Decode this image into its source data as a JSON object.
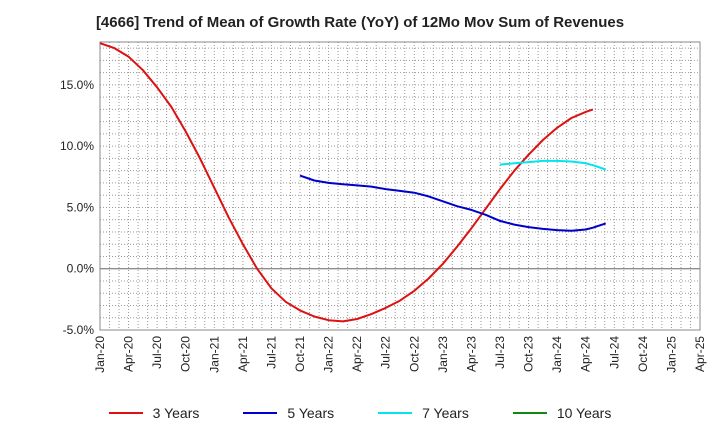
{
  "chart_data": {
    "type": "line",
    "title": "[4666]  Trend of Mean of Growth Rate (YoY) of 12Mo Mov Sum of Revenues",
    "xlabel": "",
    "ylabel": "",
    "x_ticks": [
      "Jan-20",
      "Apr-20",
      "Jul-20",
      "Oct-20",
      "Jan-21",
      "Apr-21",
      "Jul-21",
      "Oct-21",
      "Jan-22",
      "Apr-22",
      "Jul-22",
      "Oct-22",
      "Jan-23",
      "Apr-23",
      "Jul-23",
      "Oct-23",
      "Jan-24",
      "Apr-24",
      "Jul-24",
      "Oct-24",
      "Jan-25",
      "Apr-25"
    ],
    "y_ticks": [
      "-5.0%",
      "0.0%",
      "5.0%",
      "10.0%",
      "15.0%"
    ],
    "y_tick_values": [
      -5,
      0,
      5,
      10,
      15
    ],
    "ylim": [
      -5,
      18.5
    ],
    "x_range_quarters": [
      0,
      21
    ],
    "grid": true,
    "legend_position": "bottom",
    "series": [
      {
        "name": "3 Years",
        "color": "#dd1111",
        "points": [
          [
            0,
            18.4
          ],
          [
            0.5,
            18.0
          ],
          [
            1,
            17.3
          ],
          [
            1.5,
            16.2
          ],
          [
            2,
            14.8
          ],
          [
            2.5,
            13.2
          ],
          [
            3,
            11.2
          ],
          [
            3.5,
            9.0
          ],
          [
            4,
            6.6
          ],
          [
            4.5,
            4.2
          ],
          [
            5,
            2.0
          ],
          [
            5.5,
            0.0
          ],
          [
            6,
            -1.6
          ],
          [
            6.5,
            -2.7
          ],
          [
            7,
            -3.4
          ],
          [
            7.5,
            -3.9
          ],
          [
            8,
            -4.2
          ],
          [
            8.5,
            -4.3
          ],
          [
            9,
            -4.1
          ],
          [
            9.5,
            -3.7
          ],
          [
            10,
            -3.2
          ],
          [
            10.5,
            -2.6
          ],
          [
            11,
            -1.8
          ],
          [
            11.5,
            -0.8
          ],
          [
            12,
            0.4
          ],
          [
            12.5,
            1.8
          ],
          [
            13,
            3.3
          ],
          [
            13.5,
            4.9
          ],
          [
            14,
            6.5
          ],
          [
            14.5,
            8.0
          ],
          [
            15,
            9.3
          ],
          [
            15.5,
            10.5
          ],
          [
            16,
            11.5
          ],
          [
            16.5,
            12.3
          ],
          [
            17,
            12.8
          ],
          [
            17.25,
            13.0
          ]
        ]
      },
      {
        "name": "5 Years",
        "color": "#0000cc",
        "points": [
          [
            7,
            7.6
          ],
          [
            7.5,
            7.2
          ],
          [
            8,
            7.0
          ],
          [
            8.5,
            6.9
          ],
          [
            9,
            6.8
          ],
          [
            9.5,
            6.7
          ],
          [
            10,
            6.5
          ],
          [
            10.5,
            6.35
          ],
          [
            11,
            6.2
          ],
          [
            11.5,
            5.9
          ],
          [
            12,
            5.5
          ],
          [
            12.5,
            5.1
          ],
          [
            13,
            4.8
          ],
          [
            13.5,
            4.4
          ],
          [
            14,
            3.9
          ],
          [
            14.5,
            3.6
          ],
          [
            15,
            3.4
          ],
          [
            15.5,
            3.25
          ],
          [
            16,
            3.15
          ],
          [
            16.5,
            3.1
          ],
          [
            17,
            3.2
          ],
          [
            17.25,
            3.35
          ],
          [
            17.7,
            3.7
          ]
        ]
      },
      {
        "name": "7 Years",
        "color": "#00e5ee",
        "points": [
          [
            14,
            8.5
          ],
          [
            14.5,
            8.6
          ],
          [
            15,
            8.7
          ],
          [
            15.5,
            8.8
          ],
          [
            16,
            8.8
          ],
          [
            16.5,
            8.75
          ],
          [
            17,
            8.6
          ],
          [
            17.25,
            8.45
          ],
          [
            17.7,
            8.1
          ]
        ]
      },
      {
        "name": "10 Years",
        "color": "#118811",
        "points": []
      }
    ]
  }
}
